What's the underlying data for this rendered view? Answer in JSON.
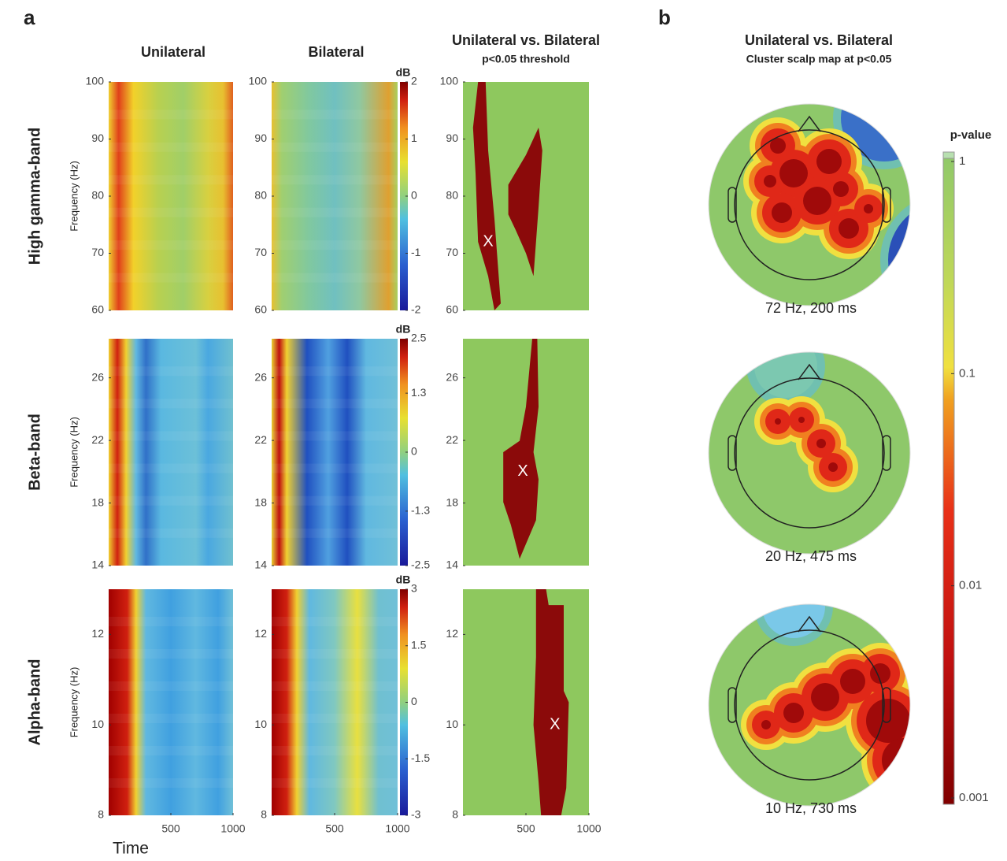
{
  "panel_a": {
    "label": "a",
    "column_titles": [
      "Unilateral",
      "Bilateral",
      "Unilateral vs. Bilateral"
    ],
    "threshold_note": "p<0.05 threshold",
    "x_label": "Time",
    "y_label": "Frequency (Hz)",
    "colorbar_unit": "dB",
    "xlim": [
      0,
      1000
    ],
    "xticks": [
      500,
      1000
    ],
    "rows": [
      {
        "name": "High gamma-band",
        "ylim": [
          60,
          100
        ],
        "yticks": [
          60,
          70,
          80,
          90,
          100
        ],
        "clim": [
          -2,
          2
        ],
        "cticks": [
          -2,
          -1,
          0,
          1,
          2
        ],
        "marker": {
          "label": "X",
          "time": 200,
          "freq": 72
        }
      },
      {
        "name": "Beta-band",
        "ylim": [
          14,
          28.5
        ],
        "yticks": [
          14,
          18,
          22,
          26
        ],
        "clim": [
          -2.5,
          2.5
        ],
        "cticks": [
          -2.5,
          -1.3,
          0,
          1.3,
          2.5
        ],
        "marker": {
          "label": "X",
          "time": 475,
          "freq": 20
        }
      },
      {
        "name": "Alpha-band",
        "ylim": [
          8,
          13
        ],
        "yticks": [
          8,
          10,
          12
        ],
        "clim": [
          -3,
          3
        ],
        "cticks": [
          -3,
          -1.5,
          0,
          1.5,
          3
        ],
        "marker": {
          "label": "X",
          "time": 730,
          "freq": 10
        }
      }
    ]
  },
  "panel_b": {
    "label": "b",
    "title": "Unilateral vs. Bilateral",
    "subtitle": "Cluster scalp map at p<0.05",
    "colorbar_label": "p-value",
    "log_scale": true,
    "clim": [
      0.001,
      1
    ],
    "cticks": [
      1,
      0.1,
      0.01,
      0.001
    ],
    "maps": [
      {
        "label": "72 Hz, 200 ms"
      },
      {
        "label": "20 Hz, 475 ms"
      },
      {
        "label": "10 Hz, 730 ms"
      }
    ]
  }
}
